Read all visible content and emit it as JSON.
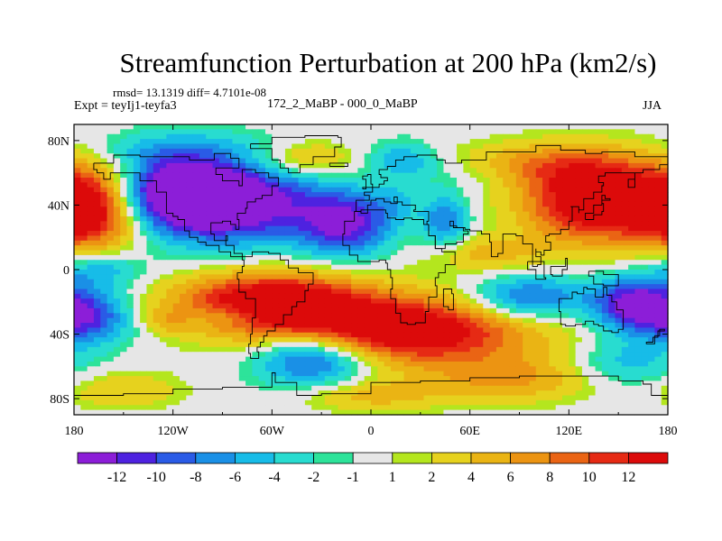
{
  "title": "Streamfunction Perturbation at 200 hPa (km2/s)",
  "stats_line": "rmsd= 13.1319  diff= 4.7101e-08",
  "experiment_label": "Expt = teyIj1-teyfa3",
  "comparison_label": "172_2_MaBP - 000_0_MaBP",
  "season_label": "JJA",
  "colors": {
    "bins": [
      "#8c1ed8",
      "#4e22e0",
      "#2a5be6",
      "#1a90e6",
      "#17bce8",
      "#28dcd0",
      "#2de39a",
      "#e6e6e6",
      "#b4e61e",
      "#e6d21e",
      "#eab414",
      "#ec9412",
      "#ea6414",
      "#e62a14",
      "#dc0a0a"
    ],
    "land_outline": "#000000",
    "frame": "#000000"
  },
  "chart_data": {
    "type": "heatmap",
    "title": "Streamfunction Perturbation at 200 hPa (km2/s)",
    "lon_range": [
      -180,
      180
    ],
    "lat_range": [
      -90,
      90
    ],
    "x_tick_labels": [
      "180",
      "120W",
      "60W",
      "0",
      "60E",
      "120E",
      "180"
    ],
    "x_tick_values": [
      -180,
      -120,
      -60,
      0,
      60,
      120,
      180
    ],
    "y_tick_labels": [
      "80N",
      "40N",
      "0",
      "40S",
      "80S"
    ],
    "y_tick_values": [
      80,
      40,
      0,
      -40,
      -80
    ],
    "colorbar_labels": [
      "-12",
      "-10",
      "-8",
      "-6",
      "-4",
      "-2",
      "-1",
      "1",
      "2",
      "4",
      "6",
      "8",
      "10",
      "12"
    ],
    "colorbar_levels": [
      -12,
      -10,
      -8,
      -6,
      -4,
      -2,
      -1,
      1,
      2,
      4,
      6,
      8,
      10,
      12
    ],
    "features": [
      {
        "lon": -170,
        "lat": 38,
        "value": 16,
        "sx": 22,
        "sy": 18
      },
      {
        "lon": -85,
        "lat": 42,
        "value": -16,
        "sx": 38,
        "sy": 18
      },
      {
        "lon": -120,
        "lat": 48,
        "value": -12,
        "sx": 25,
        "sy": 15
      },
      {
        "lon": -15,
        "lat": 28,
        "value": -12,
        "sx": 20,
        "sy": 14
      },
      {
        "lon": -120,
        "lat": 75,
        "value": -4,
        "sx": 35,
        "sy": 8
      },
      {
        "lon": -40,
        "lat": 68,
        "value": 6,
        "sx": 22,
        "sy": 8
      },
      {
        "lon": 20,
        "lat": 68,
        "value": -6,
        "sx": 15,
        "sy": 8
      },
      {
        "lon": 15,
        "lat": 42,
        "value": -3,
        "sx": 10,
        "sy": 8
      },
      {
        "lon": 45,
        "lat": 30,
        "value": -8,
        "sx": 10,
        "sy": 12
      },
      {
        "lon": 60,
        "lat": 58,
        "value": -2,
        "sx": 25,
        "sy": 8
      },
      {
        "lon": 135,
        "lat": 42,
        "value": 16,
        "sx": 30,
        "sy": 18
      },
      {
        "lon": 105,
        "lat": 65,
        "value": 6,
        "sx": 40,
        "sy": 10
      },
      {
        "lon": 70,
        "lat": 10,
        "value": 5,
        "sx": 25,
        "sy": 8
      },
      {
        "lon": -60,
        "lat": -20,
        "value": 16,
        "sx": 40,
        "sy": 13
      },
      {
        "lon": 20,
        "lat": -38,
        "value": 16,
        "sx": 55,
        "sy": 15
      },
      {
        "lon": 95,
        "lat": -18,
        "value": -10,
        "sx": 25,
        "sy": 10
      },
      {
        "lon": 160,
        "lat": -22,
        "value": -14,
        "sx": 18,
        "sy": 12
      },
      {
        "lon": -170,
        "lat": -30,
        "value": -10,
        "sx": 18,
        "sy": 12
      },
      {
        "lon": -165,
        "lat": 0,
        "value": -6,
        "sx": 18,
        "sy": 8
      },
      {
        "lon": -125,
        "lat": -32,
        "value": 3,
        "sx": 10,
        "sy": 6
      },
      {
        "lon": -85,
        "lat": -28,
        "value": -4,
        "sx": 15,
        "sy": 5
      },
      {
        "lon": -35,
        "lat": -55,
        "value": -12,
        "sx": 25,
        "sy": 12
      },
      {
        "lon": 155,
        "lat": -58,
        "value": -5,
        "sx": 22,
        "sy": 10
      },
      {
        "lon": 85,
        "lat": -68,
        "value": 6,
        "sx": 35,
        "sy": 10
      },
      {
        "lon": -150,
        "lat": -75,
        "value": 4,
        "sx": 25,
        "sy": 8
      },
      {
        "lon": 0,
        "lat": -78,
        "value": 5,
        "sx": 30,
        "sy": 7
      }
    ]
  },
  "coastlines": [
    [
      [
        -168,
        66
      ],
      [
        -156,
        71
      ],
      [
        -140,
        70
      ],
      [
        -125,
        70
      ],
      [
        -110,
        68
      ],
      [
        -95,
        72
      ],
      [
        -85,
        69
      ],
      [
        -80,
        63
      ],
      [
        -94,
        59
      ],
      [
        -90,
        55
      ],
      [
        -80,
        52
      ],
      [
        -78,
        62
      ],
      [
        -70,
        60
      ],
      [
        -62,
        57
      ],
      [
        -56,
        52
      ],
      [
        -60,
        46
      ],
      [
        -66,
        44
      ],
      [
        -70,
        42
      ],
      [
        -75,
        38
      ],
      [
        -76,
        35
      ],
      [
        -81,
        31
      ],
      [
        -80,
        25
      ],
      [
        -82,
        28
      ],
      [
        -85,
        30
      ],
      [
        -90,
        29
      ],
      [
        -97,
        27
      ],
      [
        -97,
        22
      ],
      [
        -95,
        18
      ],
      [
        -87,
        21
      ],
      [
        -88,
        15
      ],
      [
        -83,
        10
      ],
      [
        -78,
        8
      ],
      [
        -80,
        8
      ],
      [
        -85,
        11
      ],
      [
        -92,
        15
      ],
      [
        -100,
        17
      ],
      [
        -105,
        20
      ],
      [
        -110,
        24
      ],
      [
        -113,
        31
      ],
      [
        -117,
        33
      ],
      [
        -120,
        35
      ],
      [
        -124,
        40
      ],
      [
        -124,
        48
      ],
      [
        -130,
        55
      ],
      [
        -140,
        60
      ],
      [
        -150,
        60
      ],
      [
        -158,
        56
      ],
      [
        -162,
        60
      ],
      [
        -166,
        62
      ],
      [
        -168,
        66
      ]
    ],
    [
      [
        -78,
        8
      ],
      [
        -72,
        11
      ],
      [
        -62,
        10
      ],
      [
        -55,
        6
      ],
      [
        -50,
        1
      ],
      [
        -44,
        -2
      ],
      [
        -35,
        -5
      ],
      [
        -35,
        -9
      ],
      [
        -38,
        -13
      ],
      [
        -40,
        -20
      ],
      [
        -45,
        -23
      ],
      [
        -48,
        -28
      ],
      [
        -53,
        -34
      ],
      [
        -58,
        -38
      ],
      [
        -63,
        -41
      ],
      [
        -65,
        -45
      ],
      [
        -67,
        -48
      ],
      [
        -69,
        -51
      ],
      [
        -68,
        -55
      ],
      [
        -73,
        -52
      ],
      [
        -74,
        -46
      ],
      [
        -73,
        -40
      ],
      [
        -72,
        -30
      ],
      [
        -70,
        -18
      ],
      [
        -76,
        -14
      ],
      [
        -80,
        -6
      ],
      [
        -81,
        -2
      ],
      [
        -78,
        2
      ],
      [
        -77,
        6
      ],
      [
        -78,
        8
      ]
    ],
    [
      [
        -73,
        78
      ],
      [
        -60,
        82
      ],
      [
        -40,
        83
      ],
      [
        -20,
        82
      ],
      [
        -18,
        76
      ],
      [
        -22,
        70
      ],
      [
        -35,
        65
      ],
      [
        -43,
        60
      ],
      [
        -50,
        63
      ],
      [
        -55,
        68
      ],
      [
        -60,
        75
      ],
      [
        -73,
        78
      ]
    ],
    [
      [
        -10,
        36
      ],
      [
        -9,
        43
      ],
      [
        -1,
        46
      ],
      [
        -4,
        48
      ],
      [
        1,
        51
      ],
      [
        5,
        53
      ],
      [
        8,
        55
      ],
      [
        10,
        57
      ],
      [
        6,
        59
      ],
      [
        5,
        62
      ],
      [
        10,
        64
      ],
      [
        15,
        68
      ],
      [
        20,
        70
      ],
      [
        28,
        71
      ],
      [
        40,
        68
      ],
      [
        45,
        66
      ],
      [
        55,
        68
      ],
      [
        70,
        73
      ],
      [
        80,
        73
      ],
      [
        100,
        77
      ],
      [
        115,
        74
      ],
      [
        130,
        72
      ],
      [
        140,
        73
      ],
      [
        160,
        70
      ],
      [
        170,
        70
      ],
      [
        180,
        69
      ],
      [
        180,
        65
      ],
      [
        175,
        62
      ],
      [
        165,
        60
      ],
      [
        160,
        56
      ],
      [
        156,
        51
      ],
      [
        160,
        60
      ],
      [
        155,
        60
      ],
      [
        142,
        58
      ],
      [
        138,
        54
      ],
      [
        141,
        52
      ],
      [
        140,
        48
      ],
      [
        135,
        44
      ],
      [
        129,
        41
      ],
      [
        129,
        37
      ],
      [
        126,
        35
      ],
      [
        126,
        39
      ],
      [
        121,
        39
      ],
      [
        122,
        30
      ],
      [
        120,
        25
      ],
      [
        115,
        22
      ],
      [
        108,
        21
      ],
      [
        106,
        17
      ],
      [
        109,
        12
      ],
      [
        105,
        9
      ],
      [
        103,
        11
      ],
      [
        100,
        13
      ],
      [
        100,
        8
      ],
      [
        103,
        3
      ],
      [
        101,
        2
      ],
      [
        98,
        8
      ],
      [
        98,
        16
      ],
      [
        95,
        16
      ],
      [
        92,
        21
      ],
      [
        88,
        22
      ],
      [
        80,
        16
      ],
      [
        80,
        10
      ],
      [
        77,
        8
      ],
      [
        73,
        17
      ],
      [
        72,
        22
      ],
      [
        67,
        24
      ],
      [
        60,
        25
      ],
      [
        57,
        26
      ],
      [
        52,
        27
      ],
      [
        48,
        30
      ],
      [
        50,
        26
      ],
      [
        56,
        24
      ],
      [
        59,
        22
      ],
      [
        56,
        17
      ],
      [
        52,
        16
      ],
      [
        45,
        13
      ],
      [
        43,
        13
      ],
      [
        39,
        21
      ],
      [
        35,
        28
      ],
      [
        34,
        30
      ],
      [
        35,
        36
      ],
      [
        30,
        36
      ],
      [
        26,
        37
      ],
      [
        27,
        40
      ],
      [
        23,
        40
      ],
      [
        19,
        42
      ],
      [
        14,
        45
      ],
      [
        16,
        41
      ],
      [
        12,
        42
      ],
      [
        8,
        44
      ],
      [
        3,
        43
      ],
      [
        0,
        40
      ],
      [
        -2,
        37
      ],
      [
        -6,
        36
      ],
      [
        -10,
        36
      ]
    ],
    [
      [
        -6,
        36
      ],
      [
        -10,
        30
      ],
      [
        -16,
        22
      ],
      [
        -17,
        15
      ],
      [
        -13,
        9
      ],
      [
        -8,
        5
      ],
      [
        -2,
        5
      ],
      [
        5,
        6
      ],
      [
        9,
        4
      ],
      [
        10,
        0
      ],
      [
        12,
        -5
      ],
      [
        13,
        -12
      ],
      [
        12,
        -18
      ],
      [
        15,
        -27
      ],
      [
        18,
        -33
      ],
      [
        22,
        -34
      ],
      [
        27,
        -33
      ],
      [
        33,
        -26
      ],
      [
        35,
        -22
      ],
      [
        35,
        -17
      ],
      [
        40,
        -15
      ],
      [
        40,
        -10
      ],
      [
        39,
        -5
      ],
      [
        41,
        -2
      ],
      [
        45,
        3
      ],
      [
        51,
        11
      ],
      [
        44,
        11
      ],
      [
        43,
        13
      ],
      [
        39,
        21
      ],
      [
        35,
        28
      ],
      [
        32,
        31
      ],
      [
        25,
        32
      ],
      [
        20,
        31
      ],
      [
        15,
        32
      ],
      [
        10,
        35
      ],
      [
        9,
        37
      ],
      [
        2,
        37
      ],
      [
        -2,
        35
      ],
      [
        -6,
        36
      ]
    ],
    [
      [
        114,
        -22
      ],
      [
        114,
        -26
      ],
      [
        115,
        -34
      ],
      [
        118,
        -35
      ],
      [
        124,
        -34
      ],
      [
        130,
        -32
      ],
      [
        135,
        -34
      ],
      [
        138,
        -35
      ],
      [
        141,
        -38
      ],
      [
        146,
        -39
      ],
      [
        150,
        -37
      ],
      [
        153,
        -30
      ],
      [
        153,
        -25
      ],
      [
        149,
        -20
      ],
      [
        146,
        -16
      ],
      [
        143,
        -11
      ],
      [
        141,
        -13
      ],
      [
        141,
        -17
      ],
      [
        136,
        -15
      ],
      [
        136,
        -12
      ],
      [
        131,
        -11
      ],
      [
        129,
        -15
      ],
      [
        125,
        -14
      ],
      [
        122,
        -18
      ],
      [
        114,
        -22
      ]
    ],
    [
      [
        -180,
        -78
      ],
      [
        -150,
        -77
      ],
      [
        -120,
        -74
      ],
      [
        -90,
        -73
      ],
      [
        -60,
        -64
      ],
      [
        -58,
        -70
      ],
      [
        -45,
        -78
      ],
      [
        -30,
        -77
      ],
      [
        0,
        -70
      ],
      [
        30,
        -69
      ],
      [
        60,
        -67
      ],
      [
        90,
        -66
      ],
      [
        120,
        -66
      ],
      [
        150,
        -69
      ],
      [
        165,
        -71
      ],
      [
        170,
        -78
      ],
      [
        180,
        -78
      ]
    ],
    [
      [
        50,
        -15
      ],
      [
        49,
        -12
      ],
      [
        44,
        -17
      ],
      [
        44,
        -23
      ],
      [
        47,
        -25
      ],
      [
        50,
        -15
      ]
    ],
    [
      [
        -5,
        50
      ],
      [
        -3,
        56
      ],
      [
        -5,
        58
      ],
      [
        -2,
        59
      ],
      [
        0,
        53
      ],
      [
        1,
        51
      ],
      [
        -5,
        50
      ]
    ],
    [
      [
        130,
        31
      ],
      [
        135,
        34
      ],
      [
        140,
        36
      ],
      [
        141,
        41
      ],
      [
        140,
        43
      ],
      [
        145,
        44
      ],
      [
        142,
        46
      ],
      [
        140,
        40
      ],
      [
        135,
        35
      ],
      [
        130,
        31
      ]
    ],
    [
      [
        95,
        5
      ],
      [
        105,
        -5
      ],
      [
        106,
        -6
      ],
      [
        100,
        0
      ],
      [
        95,
        5
      ]
    ],
    [
      [
        109,
        2
      ],
      [
        118,
        7
      ],
      [
        119,
        0
      ],
      [
        116,
        -4
      ],
      [
        110,
        -3
      ],
      [
        109,
        2
      ]
    ],
    [
      [
        132,
        -1
      ],
      [
        141,
        -3
      ],
      [
        150,
        -10
      ],
      [
        141,
        -9
      ],
      [
        135,
        -4
      ],
      [
        132,
        -1
      ]
    ],
    [
      [
        172,
        -41
      ],
      [
        175,
        -37
      ],
      [
        178,
        -38
      ],
      [
        174,
        -42
      ],
      [
        171,
        -45
      ],
      [
        167,
        -46
      ],
      [
        172,
        -41
      ]
    ],
    [
      [
        -25,
        64
      ],
      [
        -14,
        65
      ],
      [
        -14,
        66
      ],
      [
        -22,
        66
      ],
      [
        -25,
        64
      ]
    ]
  ]
}
